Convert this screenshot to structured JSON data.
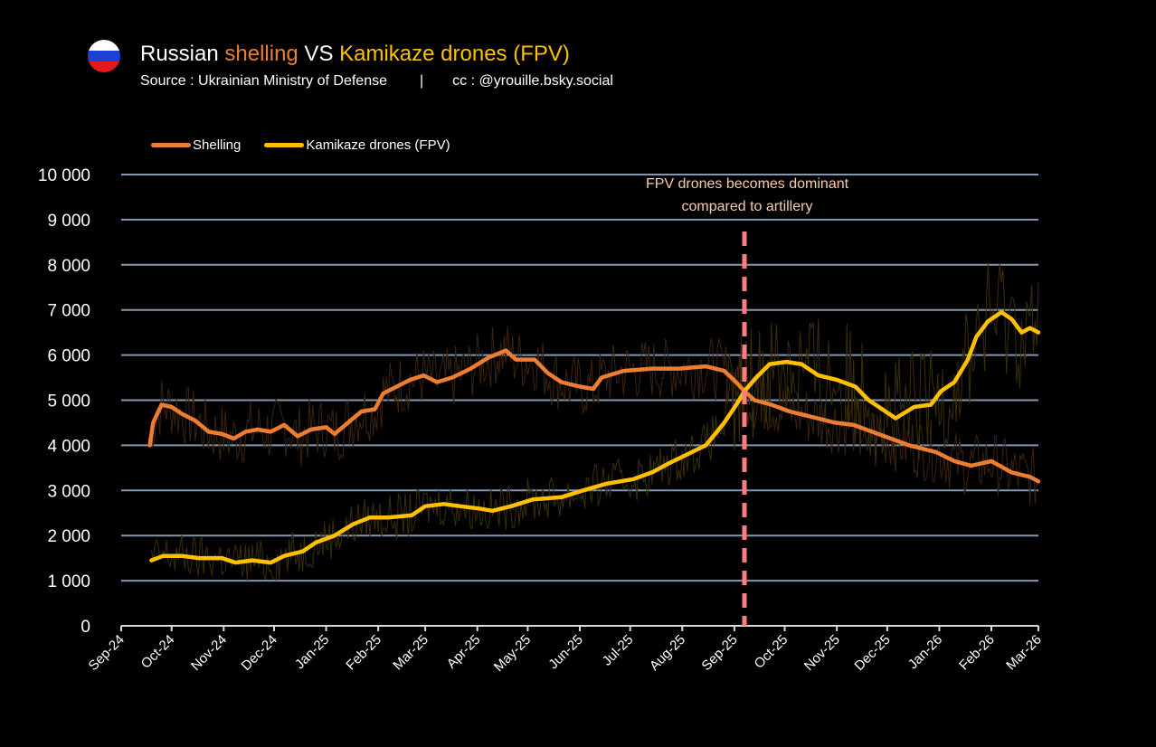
{
  "header": {
    "flag_icon": "russia-flag-icon",
    "flag_colors": [
      "#FFFFFF",
      "#1C3FD6",
      "#E4181C"
    ],
    "title_parts": [
      "Russian ",
      "shelling",
      " VS ",
      "Kamikaze drones (FPV)"
    ],
    "source": "Source : Ukrainian Ministry of Defense",
    "separator": "|",
    "credit": "cc : @yrouille.bsky.social"
  },
  "chart_data": {
    "type": "line",
    "title": "Russian shelling VS Kamikaze drones (FPV)",
    "xlabel": "",
    "ylabel": "",
    "x_unit": "days since Sep-24 (1 Sep 2024)",
    "xlim": [
      0,
      546
    ],
    "ylim": [
      0,
      10000
    ],
    "yticks": [
      0,
      1000,
      2000,
      3000,
      4000,
      5000,
      6000,
      7000,
      8000,
      9000,
      10000
    ],
    "ytick_labels": [
      "0",
      "1 000",
      "2 000",
      "3 000",
      "4 000",
      "5 000",
      "6 000",
      "7 000",
      "8 000",
      "9 000",
      "10 000"
    ],
    "xticks": [
      {
        "label": "Sep-24",
        "day": 0
      },
      {
        "label": "Oct-24",
        "day": 30
      },
      {
        "label": "Nov-24",
        "day": 61
      },
      {
        "label": "Dec-24",
        "day": 91
      },
      {
        "label": "Jan-25",
        "day": 122
      },
      {
        "label": "Feb-25",
        "day": 153
      },
      {
        "label": "Mar-25",
        "day": 181
      },
      {
        "label": "Apr-25",
        "day": 212
      },
      {
        "label": "May-25",
        "day": 242
      },
      {
        "label": "Jun-25",
        "day": 273
      },
      {
        "label": "Jul-25",
        "day": 303
      },
      {
        "label": "Aug-25",
        "day": 334
      },
      {
        "label": "Sep-25",
        "day": 365
      },
      {
        "label": "Oct-25",
        "day": 395
      },
      {
        "label": "Nov-25",
        "day": 426
      },
      {
        "label": "Dec-25",
        "day": 456
      },
      {
        "label": "Jan-26",
        "day": 487
      },
      {
        "label": "Feb-26",
        "day": 518
      },
      {
        "label": "Mar-26",
        "day": 546
      }
    ],
    "grid": true,
    "legend_position": "top-left",
    "series": [
      {
        "name": "Shelling",
        "color": "#ED7D31",
        "x": [
          17,
          19,
          24,
          30,
          36,
          44,
          52,
          60,
          67,
          74,
          81,
          89,
          97,
          105,
          113,
          122,
          127,
          135,
          143,
          151,
          156,
          164,
          172,
          180,
          188,
          197,
          208,
          219,
          229,
          235,
          246,
          254,
          262,
          273,
          281,
          286,
          299,
          316,
          332,
          348,
          359,
          366,
          371,
          377,
          387,
          398,
          409,
          425,
          436,
          447,
          458,
          469,
          485,
          496,
          506,
          518,
          530,
          541,
          546
        ],
        "values": [
          4000,
          4500,
          4900,
          4850,
          4700,
          4550,
          4300,
          4250,
          4150,
          4300,
          4350,
          4300,
          4450,
          4200,
          4350,
          4400,
          4250,
          4500,
          4750,
          4800,
          5150,
          5300,
          5450,
          5550,
          5400,
          5500,
          5700,
          5950,
          6100,
          5900,
          5900,
          5600,
          5400,
          5300,
          5250,
          5500,
          5650,
          5700,
          5700,
          5750,
          5650,
          5400,
          5200,
          5000,
          4900,
          4750,
          4650,
          4500,
          4450,
          4300,
          4150,
          4000,
          3850,
          3650,
          3550,
          3650,
          3400,
          3300,
          3200
        ]
      },
      {
        "name": "Kamikaze drones (FPV)",
        "color": "#FFC000",
        "x": [
          18,
          25,
          36,
          46,
          60,
          68,
          78,
          89,
          97,
          108,
          116,
          127,
          138,
          148,
          159,
          173,
          181,
          192,
          202,
          213,
          221,
          232,
          245,
          262,
          275,
          289,
          305,
          316,
          326,
          337,
          348,
          359,
          367,
          371,
          378,
          386,
          396,
          405,
          415,
          426,
          437,
          445,
          453,
          461,
          472,
          482,
          488,
          496,
          504,
          509,
          516,
          524,
          530,
          536,
          541,
          546
        ],
        "values": [
          1450,
          1550,
          1550,
          1500,
          1500,
          1400,
          1450,
          1400,
          1550,
          1650,
          1850,
          2000,
          2250,
          2400,
          2400,
          2450,
          2650,
          2700,
          2650,
          2600,
          2550,
          2650,
          2800,
          2850,
          3000,
          3150,
          3250,
          3400,
          3600,
          3800,
          4000,
          4500,
          4950,
          5200,
          5500,
          5800,
          5850,
          5800,
          5550,
          5450,
          5300,
          5000,
          4800,
          4600,
          4850,
          4900,
          5200,
          5400,
          5900,
          6400,
          6750,
          6950,
          6800,
          6500,
          6600,
          6500
        ]
      }
    ],
    "annotations": [
      {
        "type": "vline",
        "day": 371,
        "color": "#FF7C80",
        "style": "dashed",
        "text": [
          "FPV drones becomes dominant",
          "compared to artillery"
        ],
        "text_color": "#F8CBAD"
      }
    ]
  }
}
